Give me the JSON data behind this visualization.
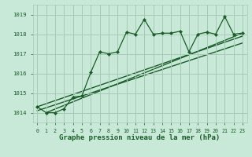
{
  "title": "Graphe pression niveau de la mer (hPa)",
  "bg_color": "#c8e8d8",
  "grid_color": "#a8c8b8",
  "line_color": "#1a5c28",
  "xlim": [
    -0.5,
    23.5
  ],
  "ylim": [
    1013.5,
    1019.5
  ],
  "yticks": [
    1014,
    1015,
    1016,
    1017,
    1018,
    1019
  ],
  "xticks": [
    0,
    1,
    2,
    3,
    4,
    5,
    6,
    7,
    8,
    9,
    10,
    11,
    12,
    13,
    14,
    15,
    16,
    17,
    18,
    19,
    20,
    21,
    22,
    23
  ],
  "series1_x": [
    0,
    1,
    2,
    3,
    4,
    5,
    6,
    7,
    8,
    9,
    10,
    11,
    12,
    13,
    14,
    15,
    16,
    17,
    18,
    19,
    20,
    21,
    22,
    23
  ],
  "series1_y": [
    1014.3,
    1014.0,
    1014.0,
    1014.2,
    1014.8,
    1014.85,
    1016.05,
    1017.1,
    1017.0,
    1017.1,
    1018.1,
    1018.0,
    1018.75,
    1018.0,
    1018.05,
    1018.05,
    1018.15,
    1017.1,
    1018.0,
    1018.1,
    1018.0,
    1018.9,
    1018.0,
    1018.05
  ],
  "trend1_x": [
    0,
    23
  ],
  "trend1_y": [
    1014.1,
    1017.55
  ],
  "trend2_x": [
    0,
    23
  ],
  "trend2_y": [
    1014.3,
    1017.9
  ],
  "trend3_x": [
    1,
    23
  ],
  "trend3_y": [
    1014.0,
    1018.05
  ]
}
